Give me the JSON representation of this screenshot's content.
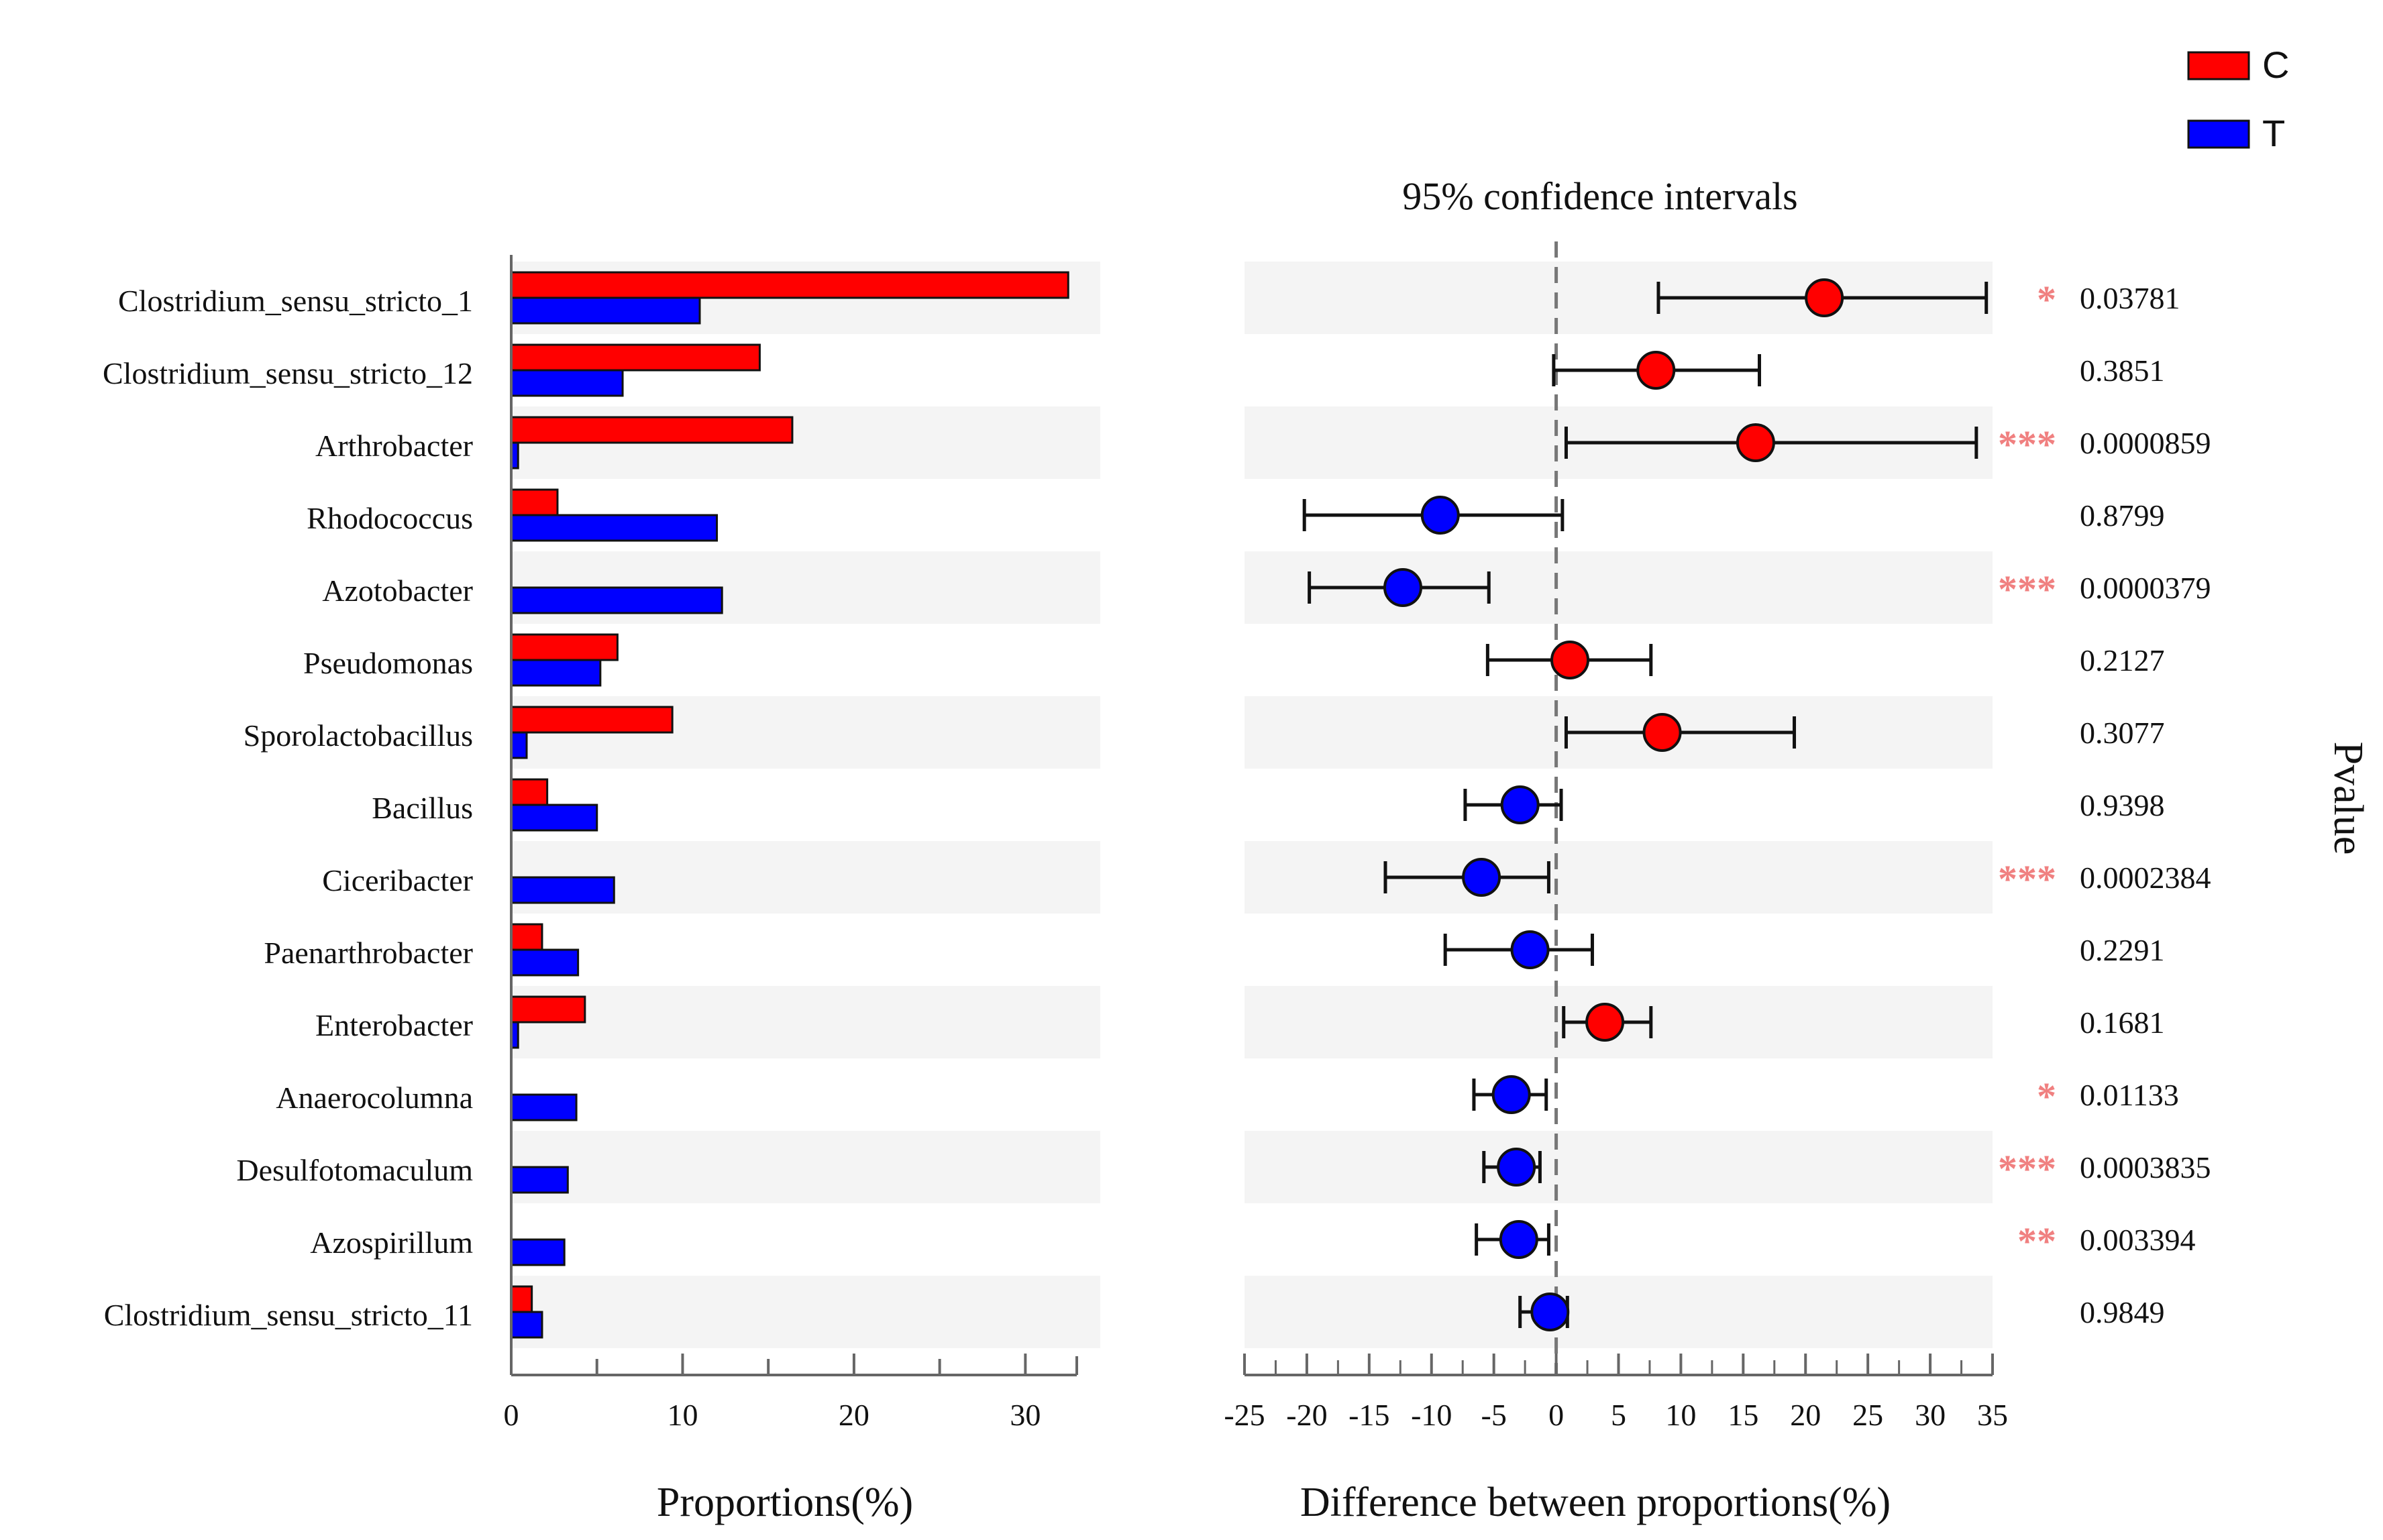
{
  "chart_data": [
    {
      "type": "bar",
      "xlabel": "Proportions(%)",
      "xlim": [
        0,
        33
      ],
      "xticks": [
        0,
        10,
        20,
        30
      ],
      "categories": [
        "Clostridium_sensu_stricto_1",
        "Clostridium_sensu_stricto_12",
        "Arthrobacter",
        "Rhodococcus",
        "Azotobacter",
        "Pseudomonas",
        "Sporolactobacillus",
        "Bacillus",
        "Ciceribacter",
        "Paenarthrobacter",
        "Enterobacter",
        "Anaerocolumna",
        "Desulfotomaculum",
        "Azospirillum",
        "Clostridium_sensu_stricto_11"
      ],
      "series": [
        {
          "name": "C",
          "color": "#ff0000",
          "values": [
            32.5,
            14.5,
            16.4,
            2.7,
            0.0,
            6.2,
            9.4,
            2.1,
            0.0,
            1.8,
            4.3,
            0.0,
            0.0,
            0.0,
            1.2
          ]
        },
        {
          "name": "T",
          "color": "#0000ff",
          "values": [
            11.0,
            6.5,
            0.4,
            12.0,
            12.3,
            5.2,
            0.9,
            5.0,
            6.0,
            3.9,
            0.4,
            3.8,
            3.3,
            3.1,
            1.8
          ]
        }
      ],
      "grid": false
    },
    {
      "type": "scatter",
      "title": "95% confidence intervals",
      "xlabel": "Difference between proportions(%)",
      "xlim": [
        -25,
        35
      ],
      "xticks": [
        -25,
        -20,
        -15,
        -10,
        -5,
        0,
        5,
        10,
        15,
        20,
        25,
        30,
        35
      ],
      "reference_line": 0,
      "right_axis_label": "Pvalue",
      "points": [
        {
          "estimate": 21.5,
          "ci": [
            8.2,
            34.5
          ],
          "group": "C",
          "pvalue": "0.03781",
          "stars": "*"
        },
        {
          "estimate": 8.0,
          "ci": [
            -0.2,
            16.3
          ],
          "group": "C",
          "pvalue": "0.3851",
          "stars": ""
        },
        {
          "estimate": 16.0,
          "ci": [
            0.8,
            33.7
          ],
          "group": "C",
          "pvalue": "0.0000859",
          "stars": "***"
        },
        {
          "estimate": -9.3,
          "ci": [
            -20.2,
            0.5
          ],
          "group": "T",
          "pvalue": "0.8799",
          "stars": ""
        },
        {
          "estimate": -12.3,
          "ci": [
            -19.8,
            -5.4
          ],
          "group": "T",
          "pvalue": "0.0000379",
          "stars": "***"
        },
        {
          "estimate": 1.1,
          "ci": [
            -5.5,
            7.6
          ],
          "group": "C",
          "pvalue": "0.2127",
          "stars": ""
        },
        {
          "estimate": 8.5,
          "ci": [
            0.8,
            19.1
          ],
          "group": "C",
          "pvalue": "0.3077",
          "stars": ""
        },
        {
          "estimate": -2.9,
          "ci": [
            -7.3,
            0.4
          ],
          "group": "T",
          "pvalue": "0.9398",
          "stars": ""
        },
        {
          "estimate": -6.0,
          "ci": [
            -13.7,
            -0.6
          ],
          "group": "T",
          "pvalue": "0.0002384",
          "stars": "***"
        },
        {
          "estimate": -2.1,
          "ci": [
            -8.9,
            2.9
          ],
          "group": "T",
          "pvalue": "0.2291",
          "stars": ""
        },
        {
          "estimate": 3.9,
          "ci": [
            0.6,
            7.6
          ],
          "group": "C",
          "pvalue": "0.1681",
          "stars": ""
        },
        {
          "estimate": -3.6,
          "ci": [
            -6.6,
            -0.8
          ],
          "group": "T",
          "pvalue": "0.01133",
          "stars": "*"
        },
        {
          "estimate": -3.2,
          "ci": [
            -5.8,
            -1.3
          ],
          "group": "T",
          "pvalue": "0.0003835",
          "stars": "***"
        },
        {
          "estimate": -3.0,
          "ci": [
            -6.4,
            -0.6
          ],
          "group": "T",
          "pvalue": "0.003394",
          "stars": "**"
        },
        {
          "estimate": -0.5,
          "ci": [
            -2.9,
            0.9
          ],
          "group": "T",
          "pvalue": "0.9849",
          "stars": ""
        }
      ]
    }
  ],
  "legend": {
    "placement": "top-right",
    "items": [
      {
        "label": "C",
        "color": "#ff0000"
      },
      {
        "label": "T",
        "color": "#0000ff"
      }
    ]
  },
  "colors": {
    "row_band": "#f4f4f4",
    "star": "#f08080",
    "axis": "#666666",
    "reference_line": "#777777"
  }
}
